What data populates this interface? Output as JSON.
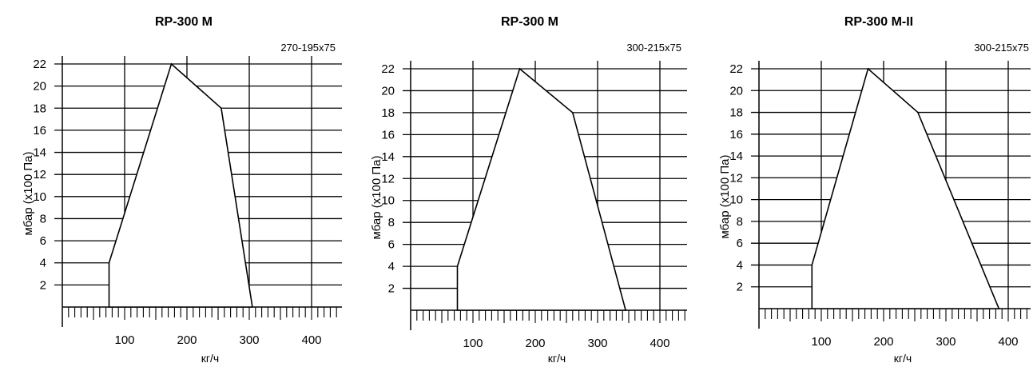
{
  "charts": [
    {
      "title": "RP-300 M",
      "subtitle": "270-195x75",
      "xlabel": "кг/ч",
      "ylabel": "мбар (x100 Па)"
    },
    {
      "title": "RP-300 M",
      "subtitle": "300-215x75",
      "xlabel": "кг/ч",
      "ylabel": "мбар (x100 Па)"
    },
    {
      "title": "RP-300 M-II",
      "subtitle": "300-215x75",
      "xlabel": "кг/ч",
      "ylabel": "мбар (x100 Па)"
    }
  ],
  "chart_data": [
    {
      "type": "area",
      "title": "RP-300 M",
      "subtitle": "270-195x75",
      "xlabel": "кг/ч",
      "ylabel": "мбар (x100 Па)",
      "xlim": [
        0,
        450
      ],
      "ylim": [
        0,
        22
      ],
      "x_ticks": [
        100,
        200,
        300,
        400
      ],
      "y_ticks": [
        2,
        4,
        6,
        8,
        10,
        12,
        14,
        16,
        18,
        20,
        22
      ],
      "grid": true,
      "x": [
        75,
        75,
        175,
        255,
        305
      ],
      "y": [
        0,
        4,
        22,
        18,
        0
      ]
    },
    {
      "type": "area",
      "title": "RP-300 M",
      "subtitle": "300-215x75",
      "xlabel": "кг/ч",
      "ylabel": "мбар (x100 Па)",
      "xlim": [
        0,
        450
      ],
      "ylim": [
        0,
        22
      ],
      "x_ticks": [
        100,
        200,
        300,
        400
      ],
      "y_ticks": [
        2,
        4,
        6,
        8,
        10,
        12,
        14,
        16,
        18,
        20,
        22
      ],
      "grid": true,
      "x": [
        75,
        75,
        175,
        260,
        345
      ],
      "y": [
        0,
        4,
        22,
        18,
        0
      ]
    },
    {
      "type": "area",
      "title": "RP-300 M-II",
      "subtitle": "300-215x75",
      "xlabel": "кг/ч",
      "ylabel": "мбар (x100 Па)",
      "xlim": [
        0,
        450
      ],
      "ylim": [
        0,
        22
      ],
      "x_ticks": [
        100,
        200,
        300,
        400
      ],
      "y_ticks": [
        2,
        4,
        6,
        8,
        10,
        12,
        14,
        16,
        18,
        20,
        22
      ],
      "grid": true,
      "x": [
        85,
        85,
        175,
        255,
        385
      ],
      "y": [
        0,
        4,
        22,
        18,
        0
      ]
    }
  ]
}
